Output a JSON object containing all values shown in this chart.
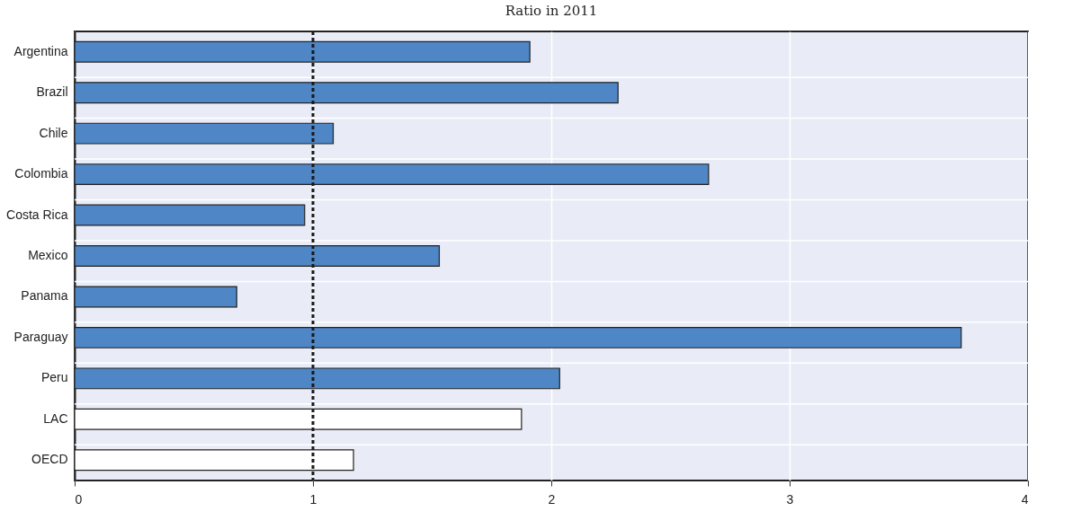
{
  "chart_data": {
    "type": "bar",
    "orientation": "horizontal",
    "subtitle": "Ratio in 2011",
    "categories": [
      "Argentina",
      "Brazil",
      "Chile",
      "Colombia",
      "Costa Rica",
      "Mexico",
      "Panama",
      "Paraguay",
      "Peru",
      "LAC",
      "OECD"
    ],
    "values": [
      1.91,
      2.28,
      1.085,
      2.66,
      0.965,
      1.53,
      0.68,
      3.72,
      2.035,
      1.875,
      1.17
    ],
    "colors": [
      "#4e86c6",
      "#4e86c6",
      "#4e86c6",
      "#4e86c6",
      "#4e86c6",
      "#4e86c6",
      "#4e86c6",
      "#4e86c6",
      "#4e86c6",
      "#ffffff",
      "#ffffff"
    ],
    "xlim": [
      0,
      4
    ],
    "xticks": [
      0,
      1,
      2,
      3,
      4
    ],
    "grid": true,
    "ref_lines": [
      {
        "axis": "x",
        "value": 1,
        "color": "#1a1a1a",
        "line_style": "dashed"
      }
    ]
  }
}
